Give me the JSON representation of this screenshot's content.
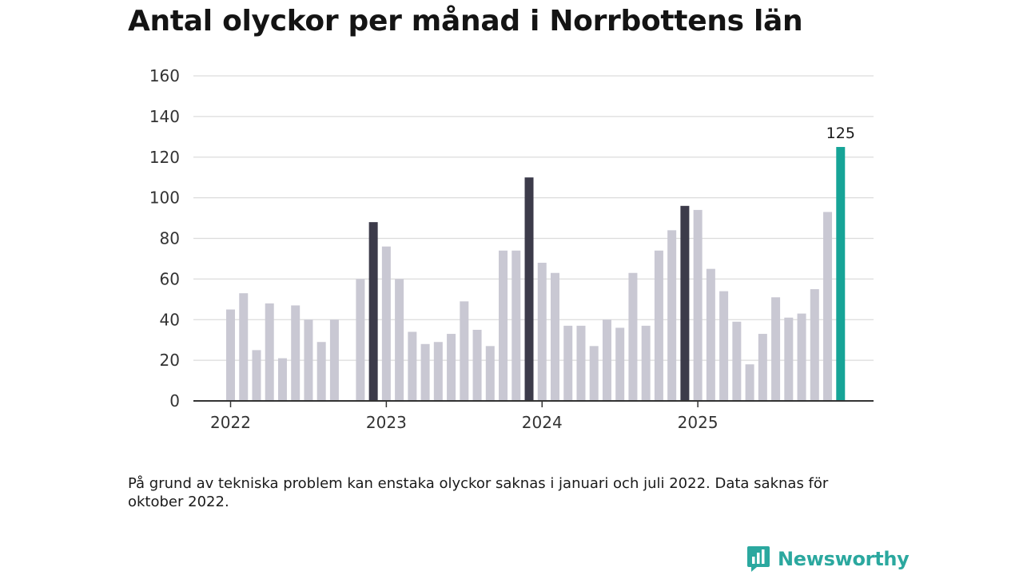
{
  "title": "Antal olyckor per månad i Norrbottens län",
  "note": "På grund av tekniska problem kan enstaka olyckor saknas i januari och juli 2022. Data saknas för oktober 2022.",
  "brand": {
    "name": "Newsworthy",
    "icon": "newsworthy-logo-icon"
  },
  "colors": {
    "default": "#c9c8d3",
    "december": "#3c3b4a",
    "latest": "#16a497",
    "grid": "#dcdcdc",
    "axis": "#333333"
  },
  "chart_data": {
    "type": "bar",
    "title": "Antal olyckor per månad i Norrbottens län",
    "xlabel": "",
    "ylabel": "",
    "ylim": [
      0,
      160
    ],
    "yticks": [
      "0",
      "20",
      "40",
      "60",
      "80",
      "100",
      "120",
      "140",
      "160"
    ],
    "year_labels": [
      "2022",
      "2023",
      "2024",
      "2025"
    ],
    "categories": [
      "2022-01",
      "2022-02",
      "2022-03",
      "2022-04",
      "2022-05",
      "2022-06",
      "2022-07",
      "2022-08",
      "2022-09",
      "2022-10",
      "2022-11",
      "2022-12",
      "2023-01",
      "2023-02",
      "2023-03",
      "2023-04",
      "2023-05",
      "2023-06",
      "2023-07",
      "2023-08",
      "2023-09",
      "2023-10",
      "2023-11",
      "2023-12",
      "2024-01",
      "2024-02",
      "2024-03",
      "2024-04",
      "2024-05",
      "2024-06",
      "2024-07",
      "2024-08",
      "2024-09",
      "2024-10",
      "2024-11",
      "2024-12",
      "2025-01",
      "2025-02",
      "2025-03",
      "2025-04",
      "2025-05",
      "2025-06",
      "2025-07",
      "2025-08",
      "2025-09",
      "2025-10",
      "2025-11",
      "2025-12"
    ],
    "values": [
      45,
      53,
      25,
      48,
      21,
      47,
      40,
      29,
      40,
      null,
      60,
      88,
      76,
      60,
      34,
      28,
      29,
      33,
      49,
      35,
      27,
      74,
      74,
      110,
      68,
      63,
      37,
      37,
      27,
      40,
      36,
      63,
      37,
      74,
      84,
      96,
      94,
      65,
      54,
      39,
      18,
      33,
      51,
      41,
      43,
      55,
      93,
      125
    ],
    "highlight": {
      "december": "december",
      "last": "latest"
    },
    "annotations": [
      {
        "category": "2025-12",
        "label": "125"
      }
    ],
    "grid": true,
    "legend": "none"
  }
}
